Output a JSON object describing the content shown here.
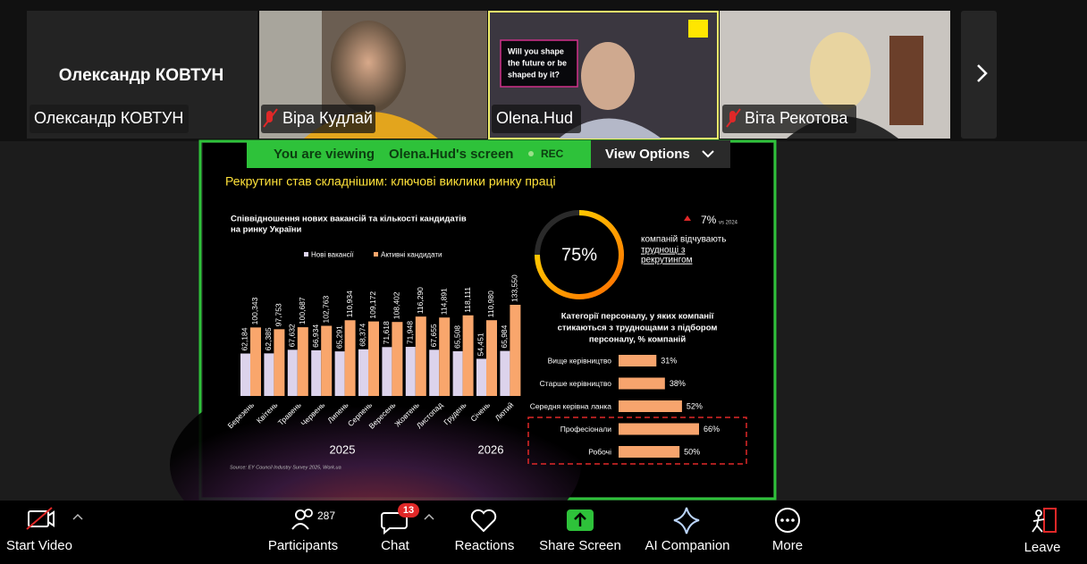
{
  "participants": [
    {
      "name": "Олександр КОВТУН"
    },
    {
      "name": "Віра Кудлай"
    },
    {
      "name": "Olena.Hud"
    },
    {
      "name": "Віта Рекотова"
    }
  ],
  "share_banner": {
    "viewing": "You are viewing",
    "presenter": "Olena.Hud's screen",
    "rec": "REC",
    "view_options": "View Options"
  },
  "slide": {
    "title": "Рекрутинг став складнішим: ключові виклики ринку праці",
    "vacancy_chart": {
      "type": "bar",
      "title_lines": [
        "Співвідношення нових вакансій та кількості кандидатів",
        "на ринку України"
      ],
      "categories": [
        "Березень",
        "Квітень",
        "Травень",
        "Червень",
        "Липень",
        "Серпень",
        "Вересень",
        "Жовтень",
        "Листопад",
        "Грудень",
        "Січень",
        "Лютий"
      ],
      "series": [
        {
          "name": "Нові вакансії",
          "color": "#dcd3ec",
          "values": [
            62184,
            62385,
            67632,
            66934,
            65291,
            68374,
            71618,
            71948,
            67655,
            65508,
            54451,
            65984
          ],
          "value_labels": [
            "62,184",
            "62,385",
            "67,632",
            "66,934",
            "65,291",
            "68,374",
            "71,618",
            "71,948",
            "67,655",
            "65,508",
            "54,451",
            "65,984"
          ]
        },
        {
          "name": "Активні кандидати",
          "color": "#f9a66c",
          "values": [
            100343,
            97753,
            100687,
            102763,
            110934,
            109172,
            108402,
            116290,
            114891,
            118111,
            110980,
            133550
          ],
          "value_labels": [
            "100,343",
            "97,753",
            "100,687",
            "102,763",
            "110,934",
            "109,172",
            "108,402",
            "116,290",
            "114,891",
            "118,111",
            "110,980",
            "133,550"
          ]
        }
      ],
      "groups": [
        "2025",
        "2026"
      ],
      "source": "Source: EY Council Industry Survey 2025, Work.ua"
    },
    "kpi": {
      "value": 75,
      "value_label": "75%",
      "change_label": "7%",
      "change_note": "vs 2024",
      "text": "компаній відчувають",
      "link_lines": [
        "труднощі з",
        "рекрутингом"
      ]
    },
    "category_chart": {
      "type": "bar",
      "orientation": "horizontal",
      "title_lines": [
        "Категорії персоналу, у яких компанії",
        "стикаються з труднощами з підбором",
        "персоналу, % компаній"
      ],
      "categories": [
        "Вище керівництво",
        "Старше керівництво",
        "Середня керівна ланка",
        "Професіонали",
        "Робочі"
      ],
      "values": [
        31,
        38,
        52,
        66,
        50
      ],
      "value_labels": [
        "31%",
        "38%",
        "52%",
        "66%",
        "50%"
      ],
      "color": "#f7a46d"
    }
  },
  "toolbar": {
    "start_video": "Start Video",
    "participants": {
      "label": "Participants",
      "count": 287
    },
    "chat": {
      "label": "Chat",
      "badge": 13
    },
    "reactions": "Reactions",
    "share_screen": "Share Screen",
    "ai_companion": "AI Companion",
    "more": "More",
    "leave": "Leave"
  }
}
